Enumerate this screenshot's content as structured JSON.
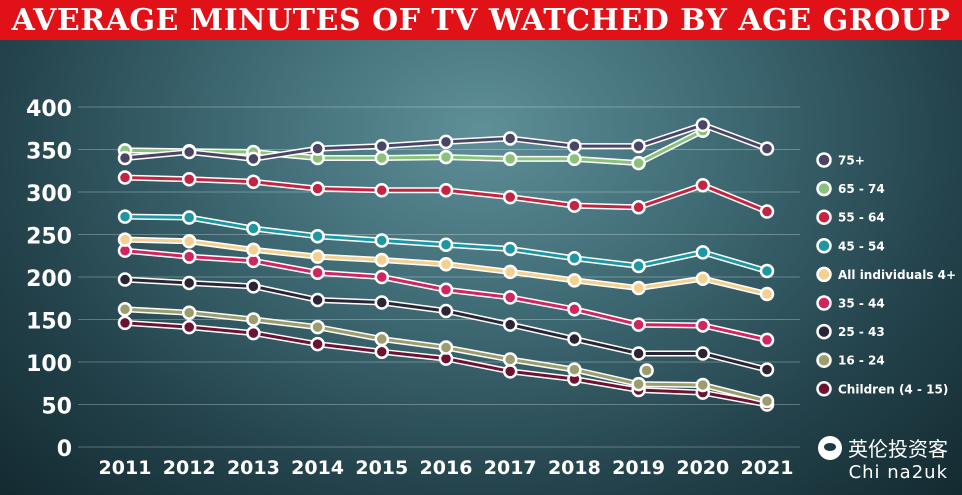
{
  "chart_data": {
    "type": "line",
    "title": "AVERAGE MINUTES OF TV WATCHED BY AGE GROUP",
    "x": [
      "2011",
      "2012",
      "2013",
      "2014",
      "2015",
      "2016",
      "2017",
      "2018",
      "2019",
      "2020",
      "2021"
    ],
    "yticks": [
      "0",
      "50",
      "100",
      "150",
      "200",
      "250",
      "300",
      "350",
      "400"
    ],
    "ylim": [
      0,
      410
    ],
    "grid": true,
    "legend_position": "right",
    "series": [
      {
        "name": "75+",
        "color": "#4a4466",
        "values": [
          340,
          347,
          339,
          351,
          354,
          359,
          363,
          354,
          354,
          379,
          351
        ]
      },
      {
        "name": "65 - 74",
        "color": "#8ac27a",
        "values": [
          349,
          348,
          347,
          340,
          340,
          341,
          339,
          339,
          334,
          372,
          null
        ]
      },
      {
        "name": "55 - 64",
        "color": "#c4243f",
        "values": [
          317,
          315,
          312,
          304,
          302,
          302,
          294,
          284,
          282,
          308,
          277
        ]
      },
      {
        "name": "45 - 54",
        "color": "#1e97a4",
        "values": [
          271,
          270,
          257,
          248,
          243,
          238,
          233,
          222,
          213,
          229,
          207
        ]
      },
      {
        "name": "All individuals 4+",
        "color": "#f3d08e",
        "values": [
          244,
          242,
          232,
          224,
          220,
          215,
          206,
          196,
          187,
          198,
          180
        ]
      },
      {
        "name": "35 - 44",
        "color": "#d2245f",
        "values": [
          231,
          224,
          219,
          205,
          200,
          185,
          176,
          162,
          144,
          143,
          126
        ]
      },
      {
        "name": "25 - 43",
        "color": "#2a2434",
        "values": [
          197,
          193,
          189,
          173,
          170,
          160,
          144,
          127,
          110,
          110,
          91
        ]
      },
      {
        "name": "16 - 24",
        "color": "#9b9d6c",
        "values": [
          162,
          158,
          150,
          141,
          127,
          117,
          103,
          91,
          74,
          73,
          54
        ]
      },
      {
        "name": "Children (4 - 15)",
        "color": "#6e1232",
        "values": [
          146,
          141,
          134,
          121,
          112,
          104,
          89,
          80,
          67,
          64,
          50
        ]
      }
    ],
    "annotations": [
      {
        "series": "16 - 24",
        "x": "2019",
        "y": 90
      }
    ]
  },
  "watermark": {
    "line1": "英伦投资客",
    "line2": "Chi na2uk"
  }
}
